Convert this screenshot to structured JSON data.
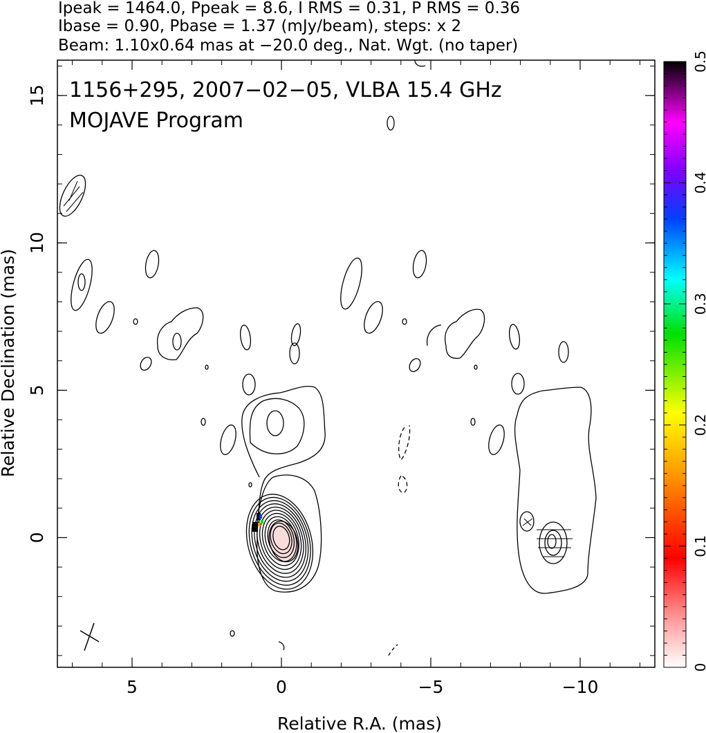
{
  "header": {
    "line1": "Ipeak = 1464.0, Ppeak = 8.6, I RMS = 0.31, P RMS = 0.36",
    "line2": "Ibase = 0.90, Pbase = 1.37 (mJy/beam), steps: x 2",
    "line3": "Beam: 1.10x0.64 mas at −20.0 deg., Nat. Wgt. (no taper)"
  },
  "chart_data": {
    "type": "contour",
    "title": "1156+295, 2007−02−05, VLBA 15.4 GHz",
    "subtitle": "MOJAVE Program",
    "xlabel": "Relative R.A. (mas)",
    "ylabel": "Relative Declination (mas)",
    "xlim": [
      7.5,
      -12.5
    ],
    "ylim": [
      -4.4,
      16.2
    ],
    "x_reversed": true,
    "x_ticks": [
      {
        "value": 5,
        "label": "5"
      },
      {
        "value": 0,
        "label": "0"
      },
      {
        "value": -5,
        "label": "−5"
      },
      {
        "value": -10,
        "label": "−10"
      }
    ],
    "y_ticks": [
      {
        "value": 0,
        "label": "0"
      },
      {
        "value": 5,
        "label": "5"
      },
      {
        "value": 10,
        "label": "10"
      },
      {
        "value": 15,
        "label": "15"
      }
    ],
    "colorbar": {
      "range": [
        0,
        0.5
      ],
      "ticks": [
        {
          "value": 0,
          "label": "0"
        },
        {
          "value": 0.1,
          "label": "0.1"
        },
        {
          "value": 0.2,
          "label": "0.2"
        },
        {
          "value": 0.3,
          "label": "0.3"
        },
        {
          "value": 0.4,
          "label": "0.4"
        },
        {
          "value": 0.5,
          "label": "0.5"
        }
      ],
      "colors": [
        "#ffffff",
        "#ff9a9a",
        "#ff0000",
        "#ff9900",
        "#ffff00",
        "#00e000",
        "#00ffff",
        "#0040ff",
        "#8000ff",
        "#ff00ff",
        "#000000"
      ]
    },
    "core": {
      "x": 0,
      "y": 0,
      "levels_mjy": [
        0.9,
        1.8,
        3.6,
        7.2,
        14.4,
        28.8,
        57.6,
        115.2,
        230.4,
        460.8,
        921.6
      ]
    },
    "fill_color": "#f8dcdc",
    "beam": {
      "major_mas": 1.1,
      "minor_mas": 0.64,
      "pa_deg": -20.0
    }
  }
}
